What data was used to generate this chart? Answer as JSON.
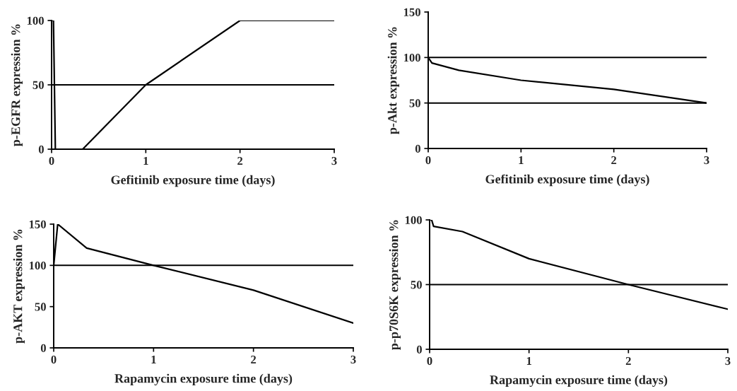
{
  "chart_data": [
    {
      "type": "line",
      "xlabel": "Gefitinib exposure time (days)",
      "ylabel": "p-EGFR expression %",
      "xlim": [
        0,
        3
      ],
      "xticks": [
        0,
        1,
        2,
        3
      ],
      "ylim": [
        0,
        100
      ],
      "yticks": [
        0,
        50,
        100
      ],
      "grid": false,
      "line_style": "solid",
      "marker": "none",
      "ref_lines": [
        {
          "axis": "y",
          "value": 50,
          "color": "#000000"
        }
      ],
      "series": [
        {
          "color": "#000000",
          "x": [
            0,
            0.02,
            0.04,
            0.33,
            1,
            2,
            3
          ],
          "values": [
            100,
            100,
            0,
            0,
            50,
            100,
            100
          ]
        }
      ]
    },
    {
      "type": "line",
      "xlabel": "Gefitinib exposure time (days)",
      "ylabel": "p-Akt expression %",
      "xlim": [
        0,
        3
      ],
      "xticks": [
        0,
        1,
        2,
        3
      ],
      "ylim": [
        0,
        150
      ],
      "yticks": [
        0,
        50,
        100,
        150
      ],
      "grid": false,
      "line_style": "solid",
      "marker": "none",
      "ref_lines": [
        {
          "axis": "y",
          "value": 100,
          "color": "#000000"
        },
        {
          "axis": "y",
          "value": 50,
          "color": "#000000"
        }
      ],
      "series": [
        {
          "color": "#000000",
          "x": [
            0,
            0.04,
            0.33,
            1,
            2,
            3
          ],
          "values": [
            100,
            94,
            86,
            75,
            65,
            50
          ]
        }
      ]
    },
    {
      "type": "line",
      "xlabel": "Rapamycin exposure time (days)",
      "ylabel": "p-AKT expression %",
      "xlim": [
        0,
        3
      ],
      "xticks": [
        0,
        1,
        2,
        3
      ],
      "ylim": [
        0,
        150
      ],
      "yticks": [
        0,
        50,
        100,
        150
      ],
      "grid": false,
      "line_style": "solid",
      "marker": "none",
      "ref_lines": [
        {
          "axis": "y",
          "value": 100,
          "color": "#000000"
        }
      ],
      "series": [
        {
          "color": "#000000",
          "x": [
            0,
            0.04,
            0.33,
            1,
            2,
            3
          ],
          "values": [
            100,
            150,
            121,
            100,
            70,
            30
          ]
        }
      ]
    },
    {
      "type": "line",
      "xlabel": "Rapamycin exposure time (days)",
      "ylabel": "p-p70S6K expression %",
      "xlim": [
        0,
        3
      ],
      "xticks": [
        0,
        1,
        2,
        3
      ],
      "ylim": [
        0,
        100
      ],
      "yticks": [
        0,
        50,
        100
      ],
      "grid": false,
      "line_style": "solid",
      "marker": "none",
      "ref_lines": [
        {
          "axis": "y",
          "value": 50,
          "color": "#000000"
        }
      ],
      "series": [
        {
          "color": "#000000",
          "x": [
            0,
            0.02,
            0.04,
            0.33,
            1,
            2,
            3
          ],
          "values": [
            100,
            100,
            95,
            91,
            70,
            50,
            31
          ]
        }
      ]
    }
  ]
}
